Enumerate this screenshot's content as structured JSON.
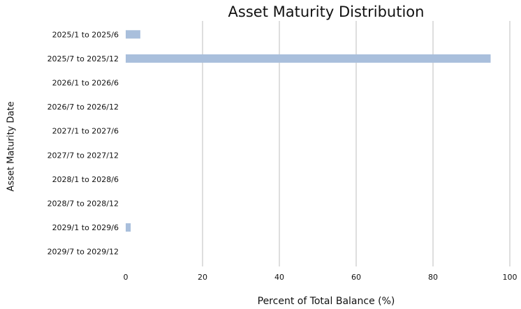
{
  "chart_data": {
    "type": "bar",
    "orientation": "horizontal",
    "title": "Asset Maturity Distribution",
    "x_label": "Percent of Total Balance (%)",
    "y_label": "Asset Maturity Date",
    "categories": [
      "2025/1 to 2025/6",
      "2025/7 to 2025/12",
      "2026/1 to 2026/6",
      "2026/7 to 2026/12",
      "2027/1 to 2027/6",
      "2027/7 to 2027/12",
      "2028/1 to 2028/6",
      "2028/7 to 2028/12",
      "2029/1 to 2029/6",
      "2029/7 to 2029/12"
    ],
    "values": [
      3.8,
      95,
      0,
      0,
      0,
      0,
      0,
      0,
      1.3,
      0
    ],
    "color": "#a9bfdc",
    "xlim": [
      0,
      100
    ],
    "xticks": [
      0,
      20,
      40,
      60,
      80,
      100
    ],
    "grid": true
  }
}
